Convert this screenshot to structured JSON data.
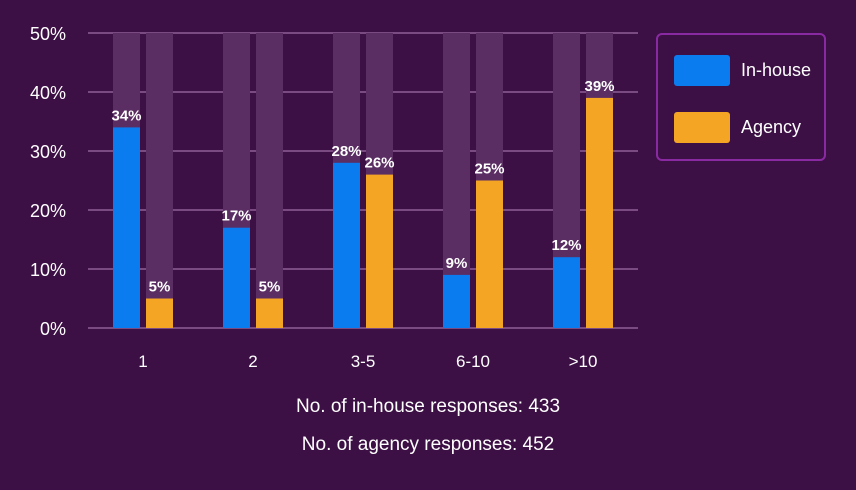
{
  "chart_data": {
    "type": "bar",
    "categories": [
      "1",
      "2",
      "3-5",
      "6-10",
      ">10"
    ],
    "series": [
      {
        "name": "In-house",
        "values": [
          34,
          17,
          28,
          9,
          12
        ],
        "color": "#0a7cf0"
      },
      {
        "name": "Agency",
        "values": [
          5,
          5,
          26,
          25,
          39
        ],
        "color": "#f4a523"
      }
    ],
    "value_suffix": "%",
    "yticks": [
      "0%",
      "10%",
      "20%",
      "30%",
      "40%",
      "50%"
    ],
    "ylim": [
      0,
      50
    ],
    "grid": true,
    "legend_position": "top-right",
    "background_track_color": "#5a2d63"
  },
  "notes": {
    "inhouse_responses": "No. of in-house responses: 433",
    "agency_responses": "No. of agency responses: 452"
  },
  "colors": {
    "background": "#3d1045",
    "gridline": "#7a4a82",
    "legend_border": "#8a2aa3"
  }
}
